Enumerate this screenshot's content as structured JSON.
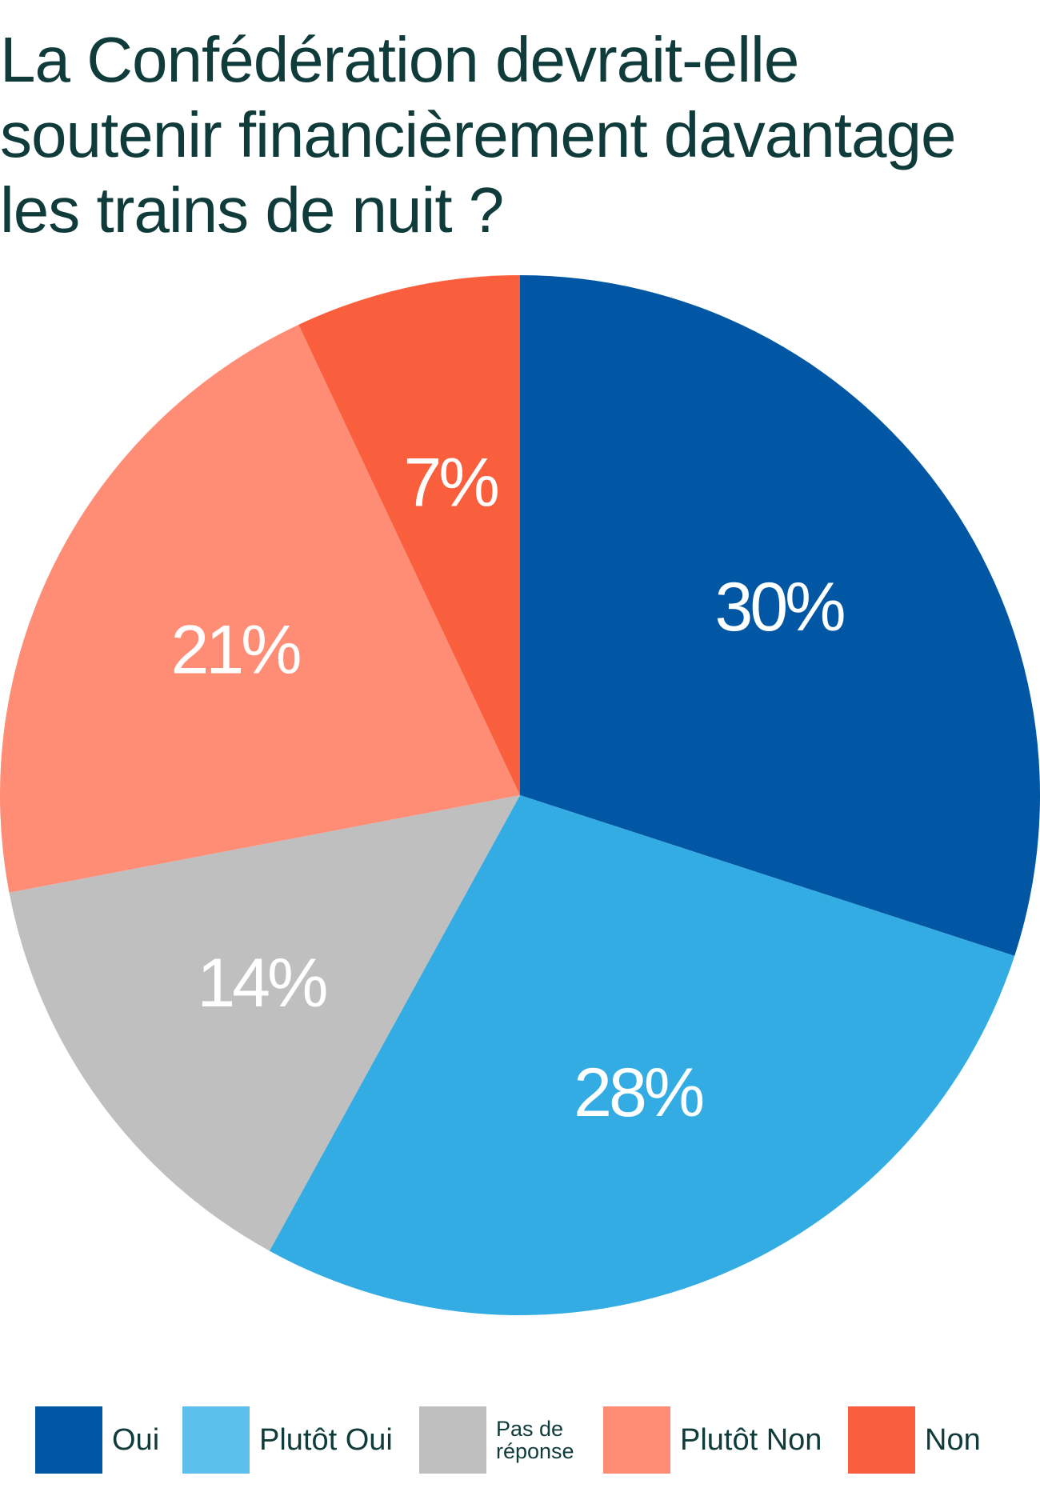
{
  "colors": {
    "title": "#0f3b3b",
    "oui": "#0157a3",
    "plutot_oui": "#33ace3",
    "pas_de_reponse": "#bfbfbf",
    "plutot_non": "#ff8c75",
    "non": "#f95e3d",
    "legend_plutot_oui": "#5dbfec"
  },
  "chart_data": {
    "type": "pie",
    "title": "La Confédération devrait-elle soutenir financièrement davantage les trains de nuit ?",
    "slices": [
      {
        "label": "Oui",
        "value": 30,
        "display": "30%",
        "color": "#0157a3"
      },
      {
        "label": "Plutôt Oui",
        "value": 28,
        "display": "28%",
        "color": "#33ace3"
      },
      {
        "label": "Pas de réponse",
        "value": 14,
        "display": "14%",
        "color": "#bfbfbf"
      },
      {
        "label": "Plutôt Non",
        "value": 21,
        "display": "21%",
        "color": "#ff8c75"
      },
      {
        "label": "Non",
        "value": 7,
        "display": "7%",
        "color": "#f95e3d"
      }
    ],
    "start": "top",
    "direction": "clockwise",
    "legend_position": "bottom"
  },
  "legend": {
    "items": [
      {
        "label": "Oui",
        "color": "#0157a3"
      },
      {
        "label": "Plutôt Oui",
        "color": "#5dbfec"
      },
      {
        "label": "Pas de réponse",
        "line1": "Pas de",
        "line2": "réponse",
        "color": "#bfbfbf"
      },
      {
        "label": "Plutôt Non",
        "color": "#ff8c75"
      },
      {
        "label": "Non",
        "color": "#f95e3d"
      }
    ]
  }
}
